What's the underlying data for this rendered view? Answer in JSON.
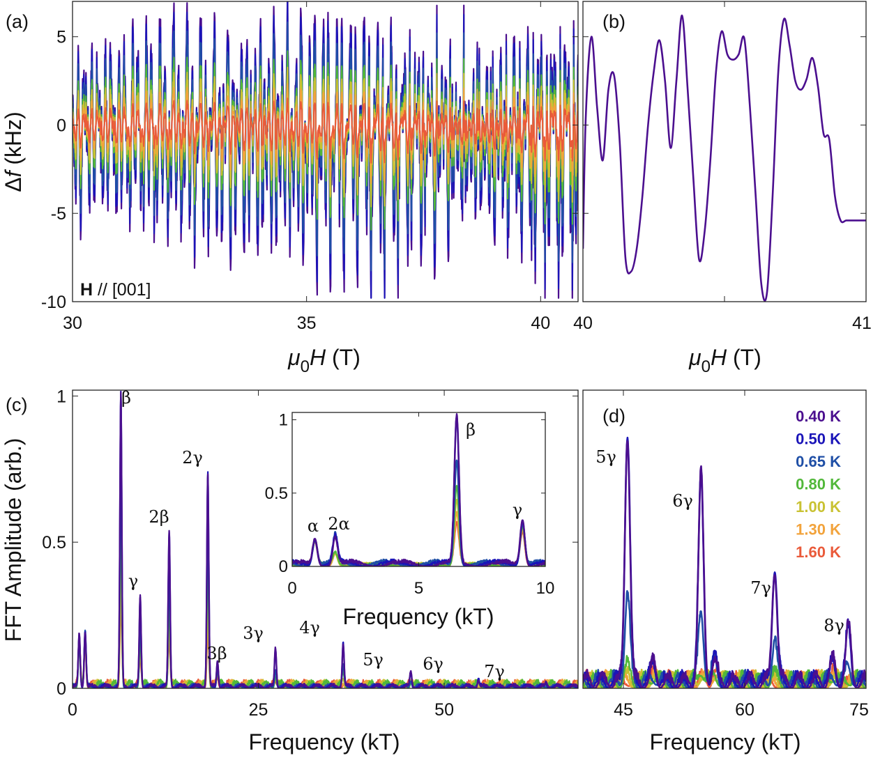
{
  "chart_data": [
    {
      "panel": "(a)",
      "type": "line",
      "ylabel": "Δf (kHz)",
      "xlabel": "μ0H (T)",
      "xlim": [
        30,
        40.8
      ],
      "ylim": [
        -10,
        7
      ],
      "xticks": [
        "30",
        "35",
        "40"
      ],
      "yticks": [
        "5",
        "0",
        "-5",
        "-10"
      ],
      "annotation_bold": "H",
      "annotation_rest": " // [001]",
      "series": [
        {
          "name": "0.40 K",
          "amplitude": 6.5
        },
        {
          "name": "0.50 K",
          "amplitude": 6.0
        },
        {
          "name": "0.65 K",
          "amplitude": 5.0
        },
        {
          "name": "0.80 K",
          "amplitude": 3.6
        },
        {
          "name": "1.00 K",
          "amplitude": 2.8
        },
        {
          "name": "1.30 K",
          "amplitude": 2.0
        },
        {
          "name": "1.60 K",
          "amplitude": 1.3
        }
      ]
    },
    {
      "panel": "(b)",
      "type": "line",
      "xlabel": "μ0H (T)",
      "xlim": [
        40,
        41
      ],
      "ylim": [
        -10,
        7
      ],
      "xticks": [
        "40",
        "41"
      ],
      "series": [
        {
          "name": "0.40 K",
          "x": [
            40.0,
            40.01,
            40.03,
            40.05,
            40.07,
            40.09,
            40.11,
            40.13,
            40.15,
            40.17,
            40.19,
            40.21,
            40.23,
            40.25,
            40.27,
            40.29,
            40.31,
            40.33,
            40.35,
            40.37,
            40.39,
            40.41,
            40.43,
            40.45,
            40.47,
            40.49,
            40.51,
            40.53,
            40.55,
            40.57,
            40.59,
            40.61,
            40.63,
            40.65,
            40.67,
            40.69,
            40.71,
            40.73,
            40.75,
            40.77,
            40.79,
            40.81,
            40.83,
            40.85,
            40.87,
            40.89,
            40.91,
            40.93,
            40.95,
            40.97,
            40.99,
            41.0
          ],
          "y": [
            -7.0,
            0.5,
            5.0,
            1.0,
            -2.0,
            2.0,
            2.8,
            -1.0,
            -7.5,
            -8.3,
            -7.0,
            -4.0,
            0.0,
            3.0,
            4.8,
            2.5,
            -1.3,
            2.5,
            6.2,
            2.0,
            -3.0,
            -7.6,
            -6.0,
            -2.0,
            3.0,
            5.3,
            4.0,
            3.7,
            4.0,
            4.9,
            1.0,
            -4.0,
            -9.0,
            -9.5,
            -4.0,
            3.0,
            6.0,
            4.5,
            2.5,
            2.0,
            2.6,
            3.8,
            2.2,
            -0.5,
            -0.8,
            -4.0,
            -5.4,
            -5.4,
            -5.4,
            -5.4,
            -5.4,
            -5.4
          ]
        }
      ]
    },
    {
      "panel": "(c)",
      "type": "line",
      "ylabel": "FFT Amplitude (arb.)",
      "xlabel": "Frequency (kT)",
      "xlim": [
        0,
        68
      ],
      "ylim": [
        0,
        1.02
      ],
      "xticks": [
        "0",
        "25",
        "50"
      ],
      "yticks": [
        "1",
        "0.5",
        "0"
      ],
      "peaks": [
        {
          "label": "β",
          "freq": 6.5,
          "height": 1.0
        },
        {
          "label": "γ",
          "freq": 9.1,
          "height": 0.31
        },
        {
          "label": "2β",
          "freq": 13.0,
          "height": 0.53
        },
        {
          "label": "2γ",
          "freq": 18.2,
          "height": 0.73
        },
        {
          "label": "3β",
          "freq": 19.5,
          "height": 0.09
        },
        {
          "label": "3γ",
          "freq": 27.3,
          "height": 0.13
        },
        {
          "label": "4γ",
          "freq": 36.4,
          "height": 0.15
        },
        {
          "label": "5γ",
          "freq": 45.5,
          "height": 0.05
        },
        {
          "label": "6γ",
          "freq": 54.6,
          "height": 0.025
        },
        {
          "label": "7γ",
          "freq": 63.7,
          "height": 0.01
        }
      ],
      "series_scale": [
        1.0,
        1.0,
        0.72,
        0.55,
        0.45,
        0.35,
        0.28
      ]
    },
    {
      "panel": "(c) inset",
      "type": "line",
      "xlabel": "Frequency (kT)",
      "xlim": [
        0,
        10
      ],
      "ylim": [
        0,
        1.05
      ],
      "xticks": [
        "0",
        "5",
        "10"
      ],
      "yticks": [
        "1",
        "0.5",
        "0"
      ],
      "peaks": [
        {
          "label": "α",
          "freq": 0.9,
          "height": 0.18
        },
        {
          "label": "2α",
          "freq": 1.7,
          "height": 0.19
        },
        {
          "label": "β",
          "freq": 6.5,
          "height": 1.0
        },
        {
          "label": "γ",
          "freq": 9.1,
          "height": 0.31
        }
      ]
    },
    {
      "panel": "(d)",
      "type": "line",
      "xlabel": "Frequency (kT)",
      "xlim": [
        40,
        75
      ],
      "xticks": [
        "45",
        "60",
        "75"
      ],
      "peaks": [
        {
          "label": "5γ",
          "freq": 45.5,
          "height": 0.83
        },
        {
          "label": "6γ",
          "freq": 54.6,
          "height": 0.69
        },
        {
          "label": "7γ",
          "freq": 63.7,
          "height": 0.38
        },
        {
          "label": "8γ",
          "freq": 72.8,
          "height": 0.18
        }
      ],
      "legend": {
        "placement": "top-right",
        "entries": [
          {
            "name": "0.40 K",
            "color": "#4b0f8f"
          },
          {
            "name": "0.50 K",
            "color": "#1a14b8"
          },
          {
            "name": "0.65 K",
            "color": "#1f4fa6"
          },
          {
            "name": "0.80 K",
            "color": "#52b83a"
          },
          {
            "name": "1.00 K",
            "color": "#c9c233"
          },
          {
            "name": "1.30 K",
            "color": "#f2a33c"
          },
          {
            "name": "1.60 K",
            "color": "#ea5a3a"
          }
        ]
      }
    }
  ],
  "panel_labels": {
    "a": "(a)",
    "b": "(b)",
    "c": "(c)",
    "d": "(d)"
  }
}
